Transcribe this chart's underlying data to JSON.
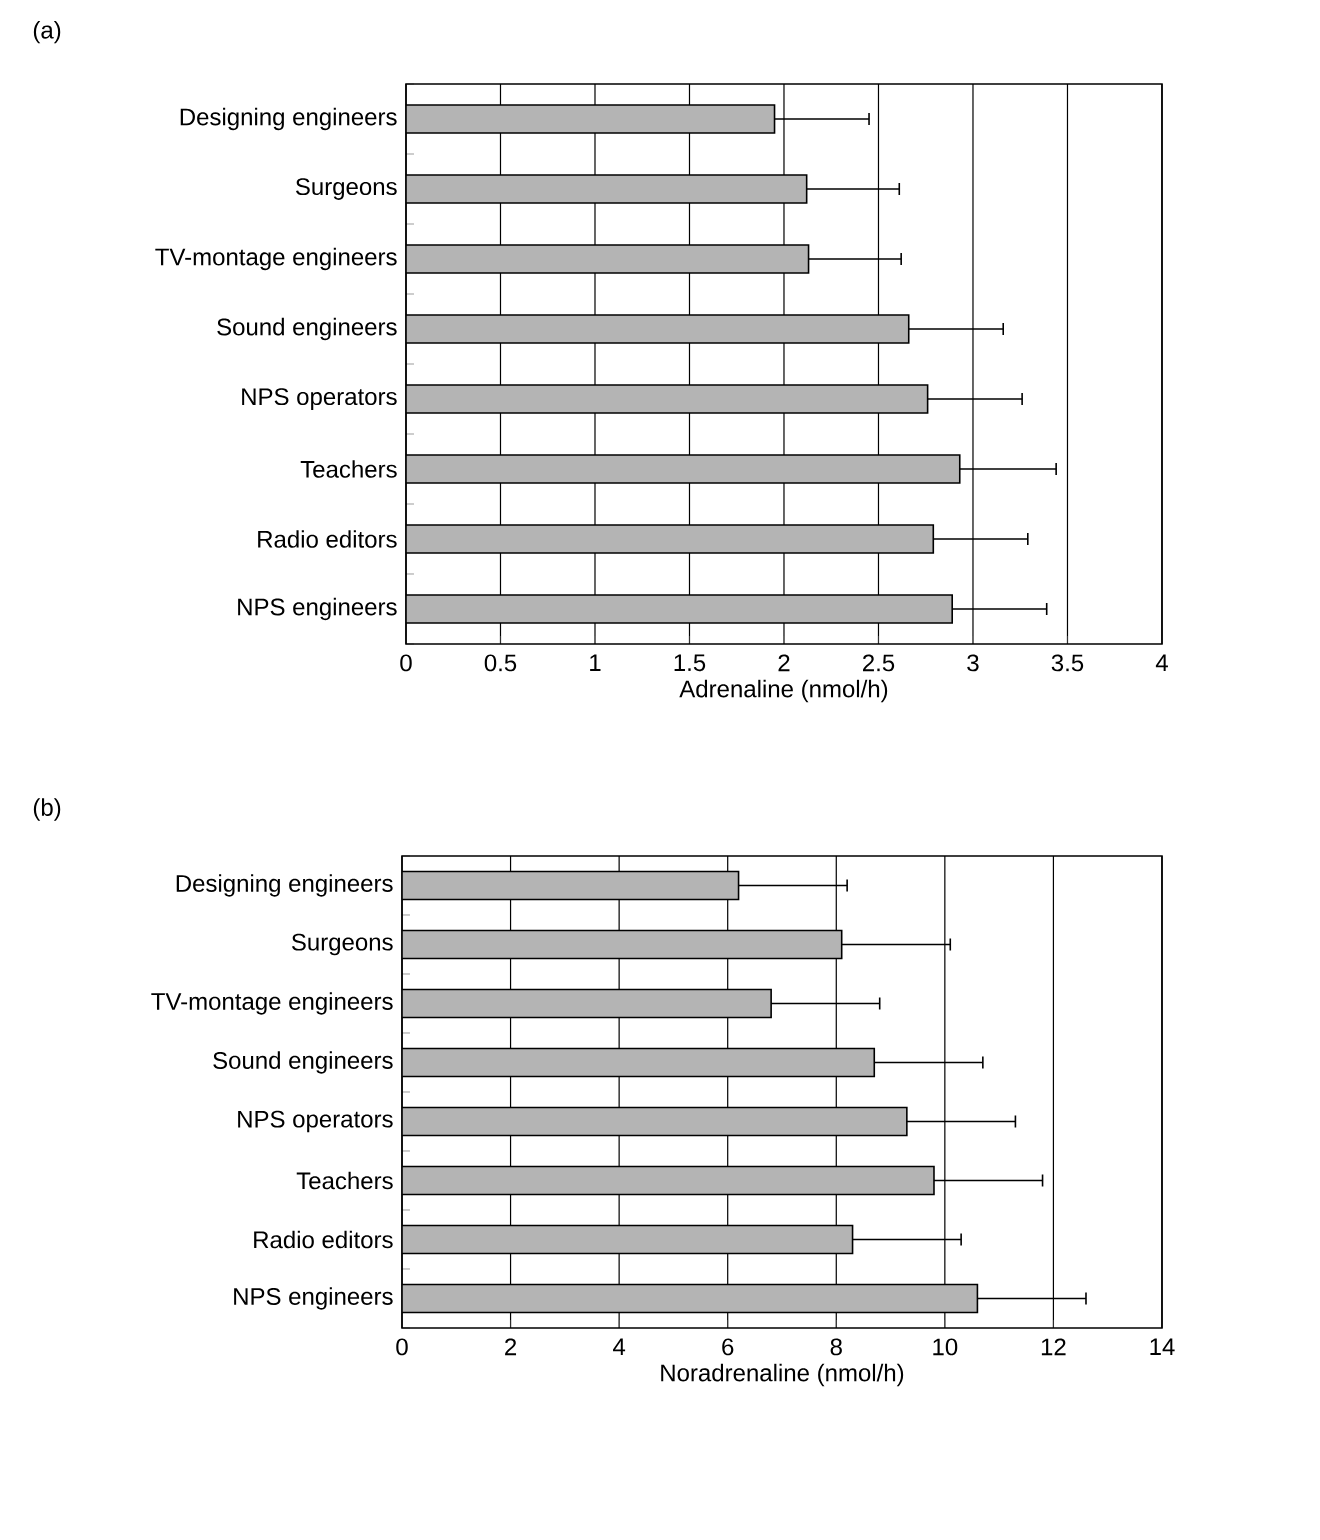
{
  "chart_data": [
    {
      "type": "bar",
      "orientation": "horizontal",
      "title": "(a)",
      "xlabel": "Adrenaline (nmol/h)",
      "categories": [
        "Designing engineers",
        "Surgeons",
        "TV-montage engineers",
        "Sound engineers",
        "NPS operators",
        "Teachers",
        "Radio editors",
        "NPS engineers"
      ],
      "values": [
        1.95,
        2.12,
        2.13,
        2.66,
        2.76,
        2.93,
        2.79,
        2.89
      ],
      "errors": [
        [
          1.95,
          2.45
        ],
        [
          2.12,
          2.61
        ],
        [
          2.13,
          2.62
        ],
        [
          2.66,
          3.16
        ],
        [
          2.76,
          3.26
        ],
        [
          2.93,
          3.44
        ],
        [
          2.79,
          3.29
        ],
        [
          2.89,
          3.39
        ]
      ],
      "color": "#b4b4b4",
      "xlim": [
        0,
        4
      ],
      "xticks": [
        0,
        0.5,
        1,
        1.5,
        2,
        2.5,
        3,
        3.5,
        4
      ],
      "grid": "x"
    },
    {
      "type": "bar",
      "orientation": "horizontal",
      "title": "(b)",
      "xlabel": "Noradrenaline (nmol/h)",
      "categories": [
        "Designing engineers",
        "Surgeons",
        "TV-montage engineers",
        "Sound engineers",
        "NPS operators",
        "Teachers",
        "Radio editors",
        "NPS engineers"
      ],
      "values": [
        6.2,
        8.1,
        6.8,
        8.7,
        9.3,
        9.8,
        8.3,
        10.6
      ],
      "errors": [
        [
          6.2,
          8.2
        ],
        [
          8.1,
          10.1
        ],
        [
          6.8,
          8.8
        ],
        [
          8.7,
          10.7
        ],
        [
          9.3,
          11.3
        ],
        [
          9.8,
          11.8
        ],
        [
          8.3,
          10.3
        ],
        [
          10.6,
          12.6
        ]
      ],
      "color": "#b4b4b4",
      "xlim": [
        0,
        14
      ],
      "xticks": [
        0,
        2,
        4,
        6,
        8,
        10,
        12,
        14
      ],
      "grid": "x"
    }
  ]
}
